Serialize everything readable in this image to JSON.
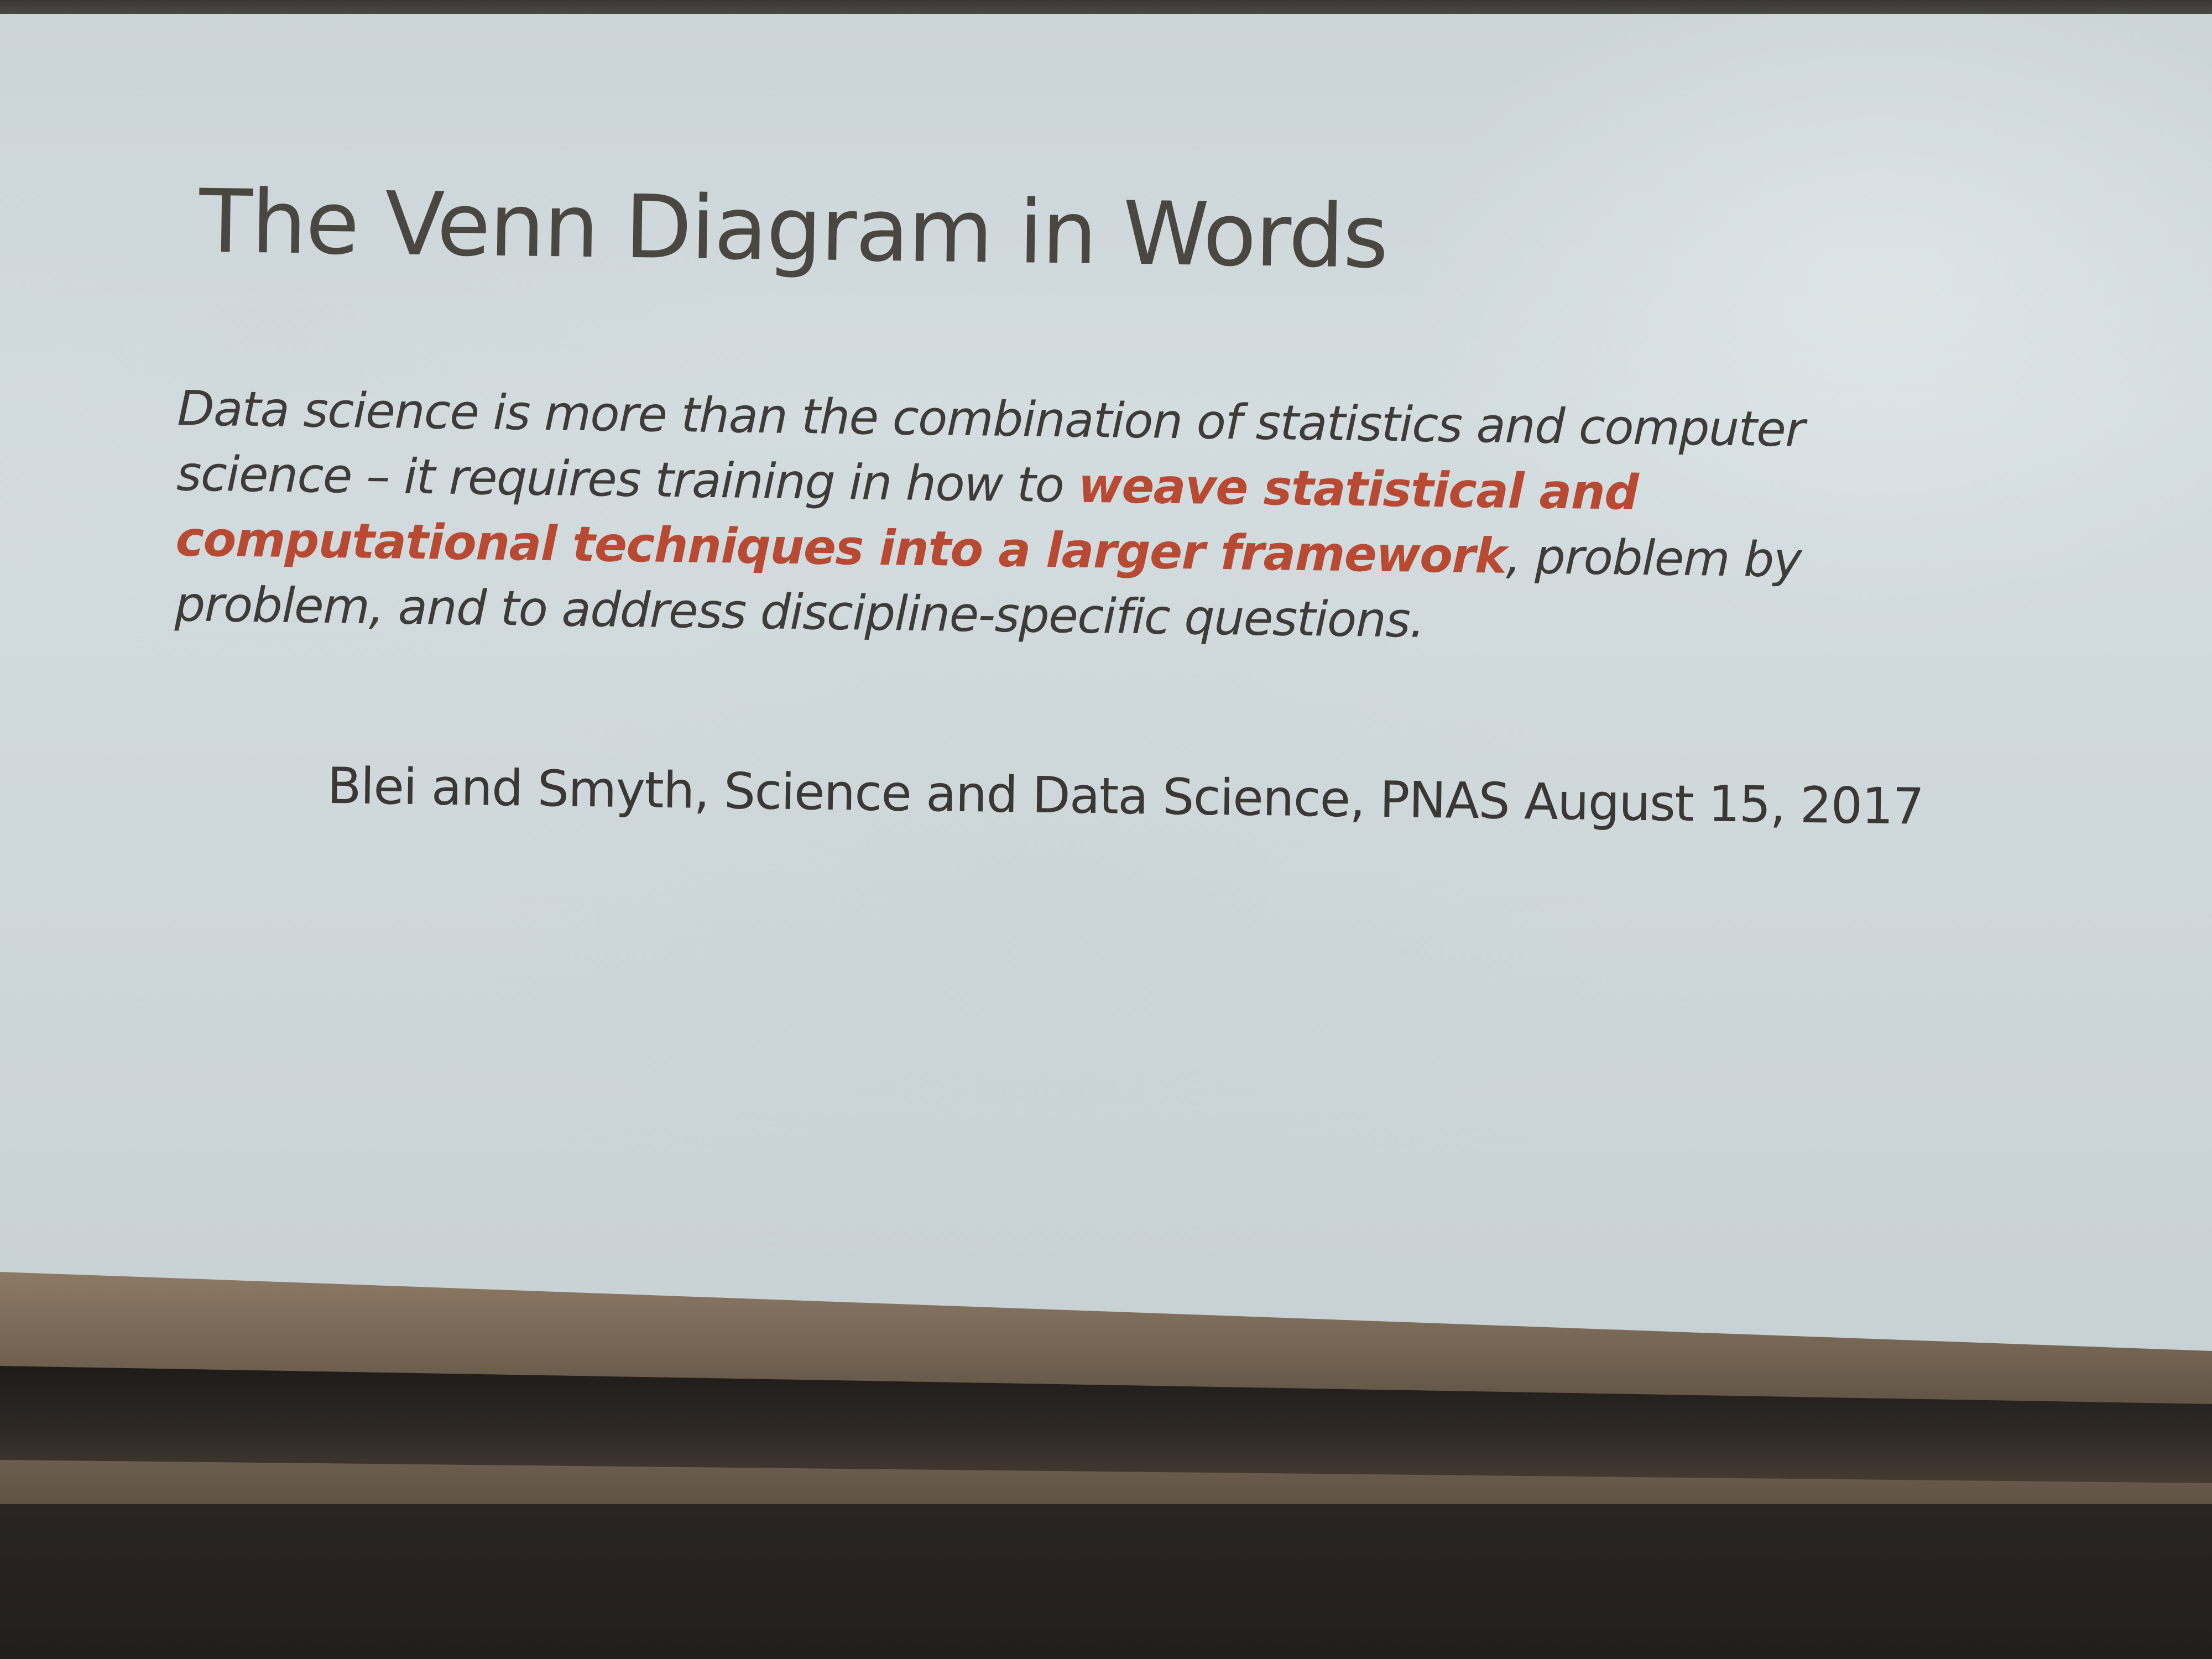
{
  "slide": {
    "title": "The Venn Diagram in Words",
    "quote": {
      "line1": "Data science is more than the combination of statistics and computer",
      "line2_plain": "science – it requires training in how to ",
      "line2_highlight": "weave statistical and",
      "line3_highlight": "computational techniques into a larger framework",
      "line3_plain": ", problem by",
      "line4": "problem, and to address discipline-specific questions."
    },
    "citation": "Blei and Smyth, Science and Data Science, PNAS August 15, 2017"
  },
  "colors": {
    "highlight": "#b84a33",
    "text": "#3e3b38",
    "screen": "#cfd8db"
  }
}
